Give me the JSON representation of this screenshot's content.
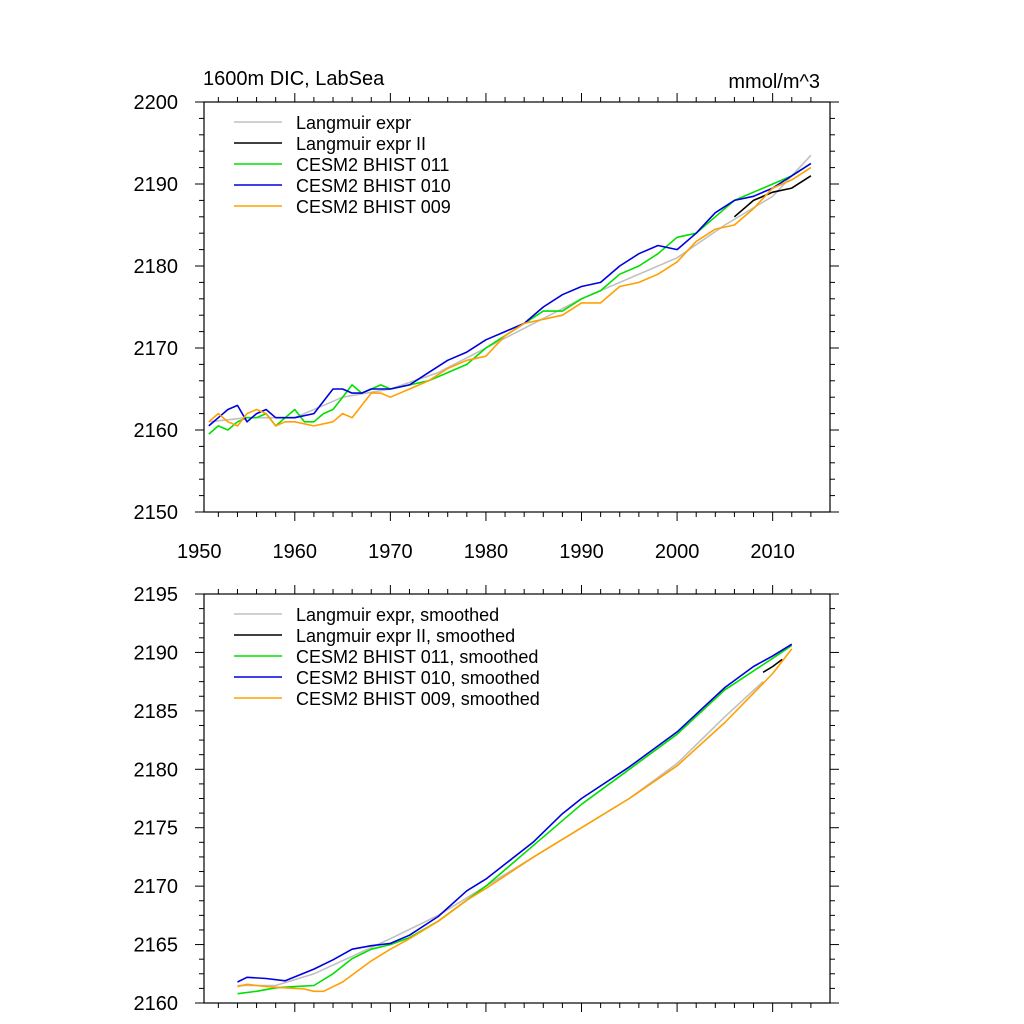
{
  "chart_data": [
    {
      "type": "line",
      "title_left": "1600m DIC, LabSea",
      "title_right": "mmol/m^3",
      "xlabel": "",
      "ylabel": "",
      "xlim": [
        1950.5,
        2016
      ],
      "ylim": [
        2150,
        2200
      ],
      "xticks": [
        1950,
        1960,
        1970,
        1980,
        1990,
        2000,
        2010
      ],
      "xtick_labels": [
        "1950",
        "1960",
        "1970",
        "1980",
        "1990",
        "2000",
        "2010"
      ],
      "yticks": [
        2150,
        2160,
        2170,
        2180,
        2190,
        2200
      ],
      "ytick_labels": [
        "2150",
        "2160",
        "2170",
        "2180",
        "2190",
        "2200"
      ],
      "legend_position": "top-left",
      "series": [
        {
          "name": "Langmuir expr",
          "color": "#c0c0c0",
          "x": [
            1951,
            1955,
            1960,
            1965,
            1970,
            1975,
            1980,
            1985,
            1990,
            1995,
            2000,
            2005,
            2010,
            2014
          ],
          "values": [
            2161,
            2161.5,
            2161.5,
            2164,
            2165,
            2167,
            2170,
            2173,
            2176,
            2178.5,
            2181,
            2185,
            2188.5,
            2193.5
          ]
        },
        {
          "name": "Langmuir expr II",
          "color": "#000000",
          "x": [
            2006,
            2008,
            2010,
            2012,
            2014
          ],
          "values": [
            2186,
            2188,
            2189,
            2189.5,
            2191
          ]
        },
        {
          "name": "CESM2 BHIST 011",
          "color": "#00e000",
          "x": [
            1951,
            1952,
            1953,
            1954,
            1955,
            1956,
            1957,
            1958,
            1959,
            1960,
            1961,
            1962,
            1963,
            1964,
            1965,
            1966,
            1967,
            1968,
            1969,
            1970,
            1972,
            1974,
            1976,
            1978,
            1980,
            1982,
            1984,
            1986,
            1988,
            1990,
            1992,
            1994,
            1996,
            1998,
            2000,
            2002,
            2004,
            2006,
            2008,
            2010,
            2012,
            2014
          ],
          "values": [
            2159.5,
            2160.5,
            2160,
            2161,
            2161.5,
            2161.5,
            2162,
            2160.5,
            2161.5,
            2162.5,
            2161,
            2161,
            2162,
            2162.5,
            2164,
            2165.5,
            2164.5,
            2165,
            2165.5,
            2165,
            2165.5,
            2166,
            2167,
            2168,
            2170,
            2171.5,
            2173,
            2174.5,
            2174.5,
            2176,
            2177,
            2179,
            2180,
            2181.5,
            2183.5,
            2184,
            2186,
            2188,
            2189,
            2190,
            2191,
            2192.5
          ]
        },
        {
          "name": "CESM2 BHIST 010",
          "color": "#0000e0",
          "x": [
            1951,
            1952,
            1953,
            1954,
            1955,
            1956,
            1957,
            1958,
            1959,
            1960,
            1962,
            1964,
            1965,
            1966,
            1967,
            1968,
            1969,
            1970,
            1972,
            1974,
            1976,
            1978,
            1980,
            1982,
            1984,
            1986,
            1988,
            1990,
            1992,
            1994,
            1996,
            1998,
            2000,
            2002,
            2004,
            2006,
            2008,
            2010,
            2012,
            2014
          ],
          "values": [
            2160.5,
            2161.5,
            2162.5,
            2163,
            2161,
            2162,
            2162.5,
            2161.5,
            2161.5,
            2161.5,
            2162,
            2165,
            2165,
            2164.5,
            2164.5,
            2165,
            2165,
            2165,
            2165.5,
            2167,
            2168.5,
            2169.5,
            2171,
            2172,
            2173,
            2175,
            2176.5,
            2177.5,
            2178,
            2180,
            2181.5,
            2182.5,
            2182,
            2184,
            2186.5,
            2188,
            2188.5,
            2189.5,
            2191,
            2192.5
          ]
        },
        {
          "name": "CESM2 BHIST 009",
          "color": "#ffa000",
          "x": [
            1951,
            1952,
            1953,
            1954,
            1955,
            1956,
            1957,
            1958,
            1959,
            1960,
            1962,
            1964,
            1965,
            1966,
            1967,
            1968,
            1969,
            1970,
            1972,
            1974,
            1976,
            1978,
            1980,
            1982,
            1984,
            1986,
            1988,
            1990,
            1992,
            1994,
            1996,
            1998,
            2000,
            2002,
            2004,
            2006,
            2008,
            2010,
            2012,
            2014
          ],
          "values": [
            2161,
            2162,
            2161,
            2160.5,
            2162,
            2162.5,
            2162,
            2160.5,
            2161,
            2161,
            2160.5,
            2161,
            2162,
            2161.5,
            2163,
            2164.5,
            2164.5,
            2164,
            2165,
            2166,
            2167.5,
            2168.5,
            2169,
            2171.5,
            2173,
            2173.5,
            2174,
            2175.5,
            2175.5,
            2177.5,
            2178,
            2179,
            2180.5,
            2183,
            2184.5,
            2185,
            2187,
            2189.5,
            2190.5,
            2192
          ]
        }
      ]
    },
    {
      "type": "line",
      "title_left": "",
      "title_right": "",
      "xlabel": "",
      "ylabel": "",
      "xlim": [
        1950.5,
        2016
      ],
      "ylim": [
        2160,
        2195
      ],
      "xticks": [
        1950,
        1960,
        1970,
        1980,
        1990,
        2000,
        2010
      ],
      "xtick_labels": [],
      "yticks": [
        2160,
        2165,
        2170,
        2175,
        2180,
        2185,
        2190,
        2195
      ],
      "ytick_labels": [
        "2160",
        "2165",
        "2170",
        "2175",
        "2180",
        "2185",
        "2190",
        "2195"
      ],
      "legend_position": "top-left",
      "series": [
        {
          "name": "Langmuir expr, smoothed",
          "color": "#c0c0c0",
          "x": [
            1954,
            1958,
            1962,
            1966,
            1970,
            1975,
            1980,
            1985,
            1990,
            1995,
            2000,
            2005,
            2009
          ],
          "values": [
            2161.5,
            2161.5,
            2162.5,
            2164,
            2165.5,
            2167.5,
            2170,
            2172.5,
            2175,
            2177.5,
            2180.5,
            2184.5,
            2187.5
          ]
        },
        {
          "name": "Langmuir expr II, smoothed",
          "color": "#000000",
          "x": [
            2009,
            2010,
            2011
          ],
          "values": [
            2188.3,
            2188.8,
            2189.4
          ]
        },
        {
          "name": "CESM2 BHIST 011, smoothed",
          "color": "#00e000",
          "x": [
            1954,
            1956,
            1958,
            1960,
            1962,
            1964,
            1966,
            1968,
            1970,
            1972,
            1975,
            1980,
            1985,
            1990,
            1995,
            2000,
            2005,
            2010,
            2012
          ],
          "values": [
            2160.8,
            2161,
            2161.3,
            2161.4,
            2161.5,
            2162.5,
            2163.8,
            2164.6,
            2165,
            2165.6,
            2167,
            2170,
            2173.5,
            2177,
            2180,
            2183,
            2186.8,
            2189.5,
            2190.6
          ]
        },
        {
          "name": "CESM2 BHIST 010, smoothed",
          "color": "#0000e0",
          "x": [
            1954,
            1955,
            1957,
            1959,
            1962,
            1964,
            1966,
            1968,
            1970,
            1972,
            1975,
            1978,
            1980,
            1985,
            1988,
            1990,
            1995,
            2000,
            2005,
            2008,
            2010,
            2012
          ],
          "values": [
            2161.8,
            2162.2,
            2162.1,
            2161.9,
            2162.9,
            2163.7,
            2164.6,
            2164.9,
            2165.1,
            2165.8,
            2167.4,
            2169.6,
            2170.6,
            2173.8,
            2176.2,
            2177.5,
            2180.2,
            2183.2,
            2187,
            2188.8,
            2189.7,
            2190.7
          ]
        },
        {
          "name": "CESM2 BHIST 009, smoothed",
          "color": "#ffa000",
          "x": [
            1954,
            1955,
            1957,
            1959,
            1961,
            1962,
            1963,
            1965,
            1968,
            1970,
            1972,
            1975,
            1978,
            1980,
            1985,
            1990,
            1995,
            2000,
            2005,
            2010,
            2012
          ],
          "values": [
            2161.4,
            2161.6,
            2161.4,
            2161.3,
            2161.2,
            2161,
            2161,
            2161.8,
            2163.6,
            2164.6,
            2165.5,
            2167,
            2168.8,
            2169.8,
            2172.5,
            2175,
            2177.5,
            2180.3,
            2184,
            2188.2,
            2190.3
          ]
        }
      ]
    }
  ]
}
